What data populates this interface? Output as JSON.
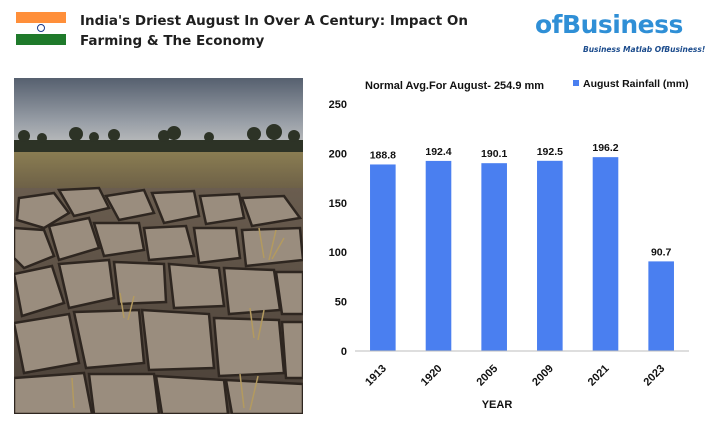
{
  "header": {
    "title": "India's Driest August In Over A Century: Impact On Farming & The Economy"
  },
  "logo": {
    "brand": "ofBusiness",
    "tagline": "Business Matlab OfBusiness!",
    "color": "#2f8fd6"
  },
  "colors": {
    "bar": "#4a7ff0",
    "flag_saffron": "#ff8f3a",
    "flag_green": "#1f7a2b"
  },
  "chart_data": {
    "type": "bar",
    "title": "Normal Avg.For August- 254.9 mm",
    "xlabel": "YEAR",
    "ylabel": "",
    "categories": [
      "1913",
      "1920",
      "2005",
      "2009",
      "2021",
      "2023"
    ],
    "series": [
      {
        "name": "August Rainfall (mm)",
        "values": [
          188.8,
          192.4,
          190.1,
          192.5,
          196.2,
          90.7
        ]
      }
    ],
    "data_labels": [
      "188.8",
      "192.4",
      "190.1",
      "192.5",
      "196.2",
      "90.7"
    ],
    "ylim": [
      0,
      250
    ],
    "yticks": [
      0,
      50,
      100,
      150,
      200,
      250
    ],
    "grid": false,
    "legend": "top-right"
  }
}
